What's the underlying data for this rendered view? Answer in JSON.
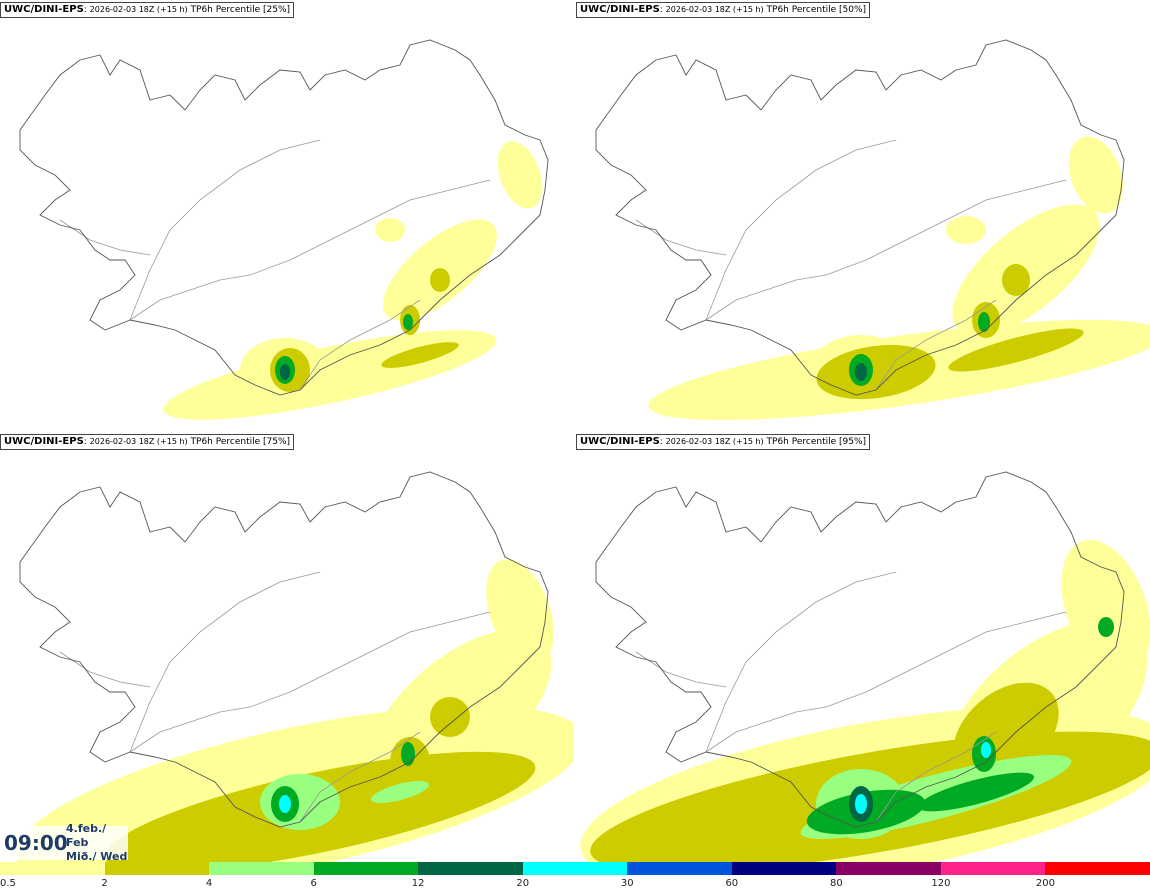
{
  "panels": [
    {
      "model": "UWC/DINI-EPS",
      "run": "2026-02-03 18Z (+15 h)",
      "field": "TP6h Percentile [25%]"
    },
    {
      "model": "UWC/DINI-EPS",
      "run": "2026-02-03 18Z (+15 h)",
      "field": "TP6h Percentile [50%]"
    },
    {
      "model": "UWC/DINI-EPS",
      "run": "2026-02-03 18Z (+15 h)",
      "field": "TP6h Percentile [75%]"
    },
    {
      "model": "UWC/DINI-EPS",
      "run": "2026-02-03 18Z (+15 h)",
      "field": "TP6h Percentile [95%]"
    }
  ],
  "stamp": {
    "time": "09:00",
    "date_line1": "4.feb./ Feb",
    "date_line2": "Mið./ Wed"
  },
  "legend": {
    "ticks": [
      "0.5",
      "2",
      "4",
      "6",
      "12",
      "20",
      "30",
      "60",
      "80",
      "120",
      "200"
    ],
    "colors": [
      "#ffff99",
      "#cccc00",
      "#99ff80",
      "#00aa22",
      "#006644",
      "#00ffff",
      "#0055dd",
      "#000080",
      "#880066",
      "#ff2288",
      "#ff0000"
    ]
  },
  "map_colors": {
    "level1": "#ffff99",
    "level2": "#cccc00",
    "level3": "#99ff80",
    "level4": "#00aa22",
    "level5": "#006644",
    "level6": "#00ffff",
    "coast": "#555555",
    "roads": "#999999"
  }
}
